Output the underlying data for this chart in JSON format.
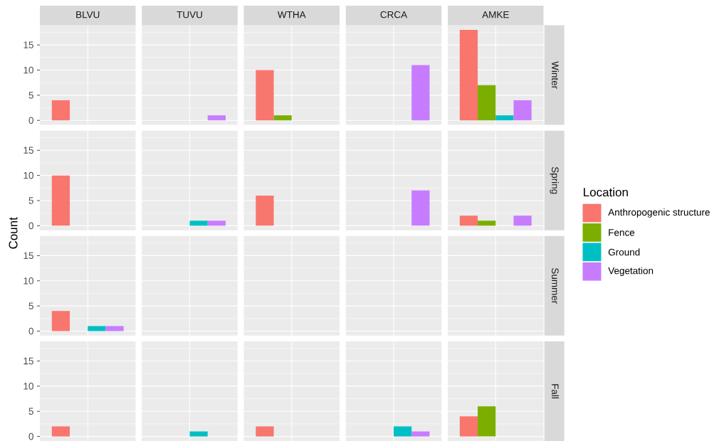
{
  "chart_data": [
    {
      "type": "bar",
      "y2label": "Winter",
      "categories": [
        "BLVU",
        "TUVU",
        "WTHA",
        "CRCA",
        "AMKE"
      ],
      "series": [
        {
          "color": "#f8766d",
          "values": [
            4,
            null,
            10,
            null,
            18
          ]
        },
        {
          "color": "#7cae00",
          "values": [
            null,
            null,
            1,
            null,
            7
          ]
        },
        {
          "color": "#00bfc4",
          "values": [
            null,
            null,
            null,
            null,
            1
          ]
        },
        {
          "color": "#c77cff",
          "values": [
            null,
            1,
            null,
            11,
            4
          ]
        }
      ],
      "ylim": [
        -0.9,
        18.9
      ],
      "yticks": [
        0,
        5,
        10,
        15
      ],
      "grid": true
    },
    {
      "type": "bar",
      "y2label": "Spring",
      "ylabel": "Count",
      "legend": "right",
      "legend_title": "Location",
      "categories": [
        null,
        null,
        null,
        null,
        null
      ],
      "series": [
        {
          "name": "Anthropogenic structure",
          "color": "#f8766d",
          "values": [
            10,
            null,
            6,
            null,
            2
          ]
        },
        {
          "name": "Fence",
          "color": "#7cae00",
          "values": [
            null,
            null,
            null,
            null,
            1
          ]
        },
        {
          "name": "Ground",
          "color": "#00bfc4",
          "values": [
            null,
            1,
            null,
            null,
            null
          ]
        },
        {
          "name": "Vegetation",
          "color": "#c77cff",
          "values": [
            null,
            1,
            null,
            7,
            2
          ]
        }
      ],
      "ylim": [
        -0.9,
        18.9
      ],
      "yticks": [
        0,
        5,
        10,
        15
      ],
      "grid": true,
      "tick_labels": "y"
    },
    {
      "type": "bar",
      "y2label": "Summer",
      "categories": [
        null,
        null,
        null,
        null,
        null
      ],
      "series": [
        {
          "color": "#f8766d",
          "values": [
            4,
            null,
            null,
            null,
            null
          ]
        },
        {
          "values": [
            null,
            null,
            null,
            null,
            null
          ]
        },
        {
          "color": "#00bfc4",
          "values": [
            1,
            null,
            null,
            null,
            null
          ]
        },
        {
          "color": "#c77cff",
          "values": [
            1,
            null,
            null,
            null,
            null
          ]
        }
      ],
      "ylim": [
        -0.9,
        18.9
      ],
      "yticks": [
        0,
        5,
        10,
        15
      ],
      "grid": true,
      "tick_labels": "y"
    },
    {
      "type": "bar",
      "y2label": "Fall",
      "categories": [
        null,
        null,
        null,
        null,
        null
      ],
      "series": [
        {
          "color": "#f8766d",
          "values": [
            2,
            null,
            2,
            null,
            4
          ]
        },
        {
          "color": "#7cae00",
          "values": [
            null,
            null,
            null,
            null,
            6
          ]
        },
        {
          "color": "#00bfc4",
          "values": [
            null,
            1,
            null,
            2,
            null
          ]
        },
        {
          "color": "#c77cff",
          "values": [
            null,
            null,
            null,
            1,
            null
          ]
        }
      ],
      "ylim": [
        -0.9,
        18.9
      ],
      "yticks": [
        0,
        5,
        10,
        15
      ],
      "grid": true,
      "tick_labels": "y"
    }
  ]
}
